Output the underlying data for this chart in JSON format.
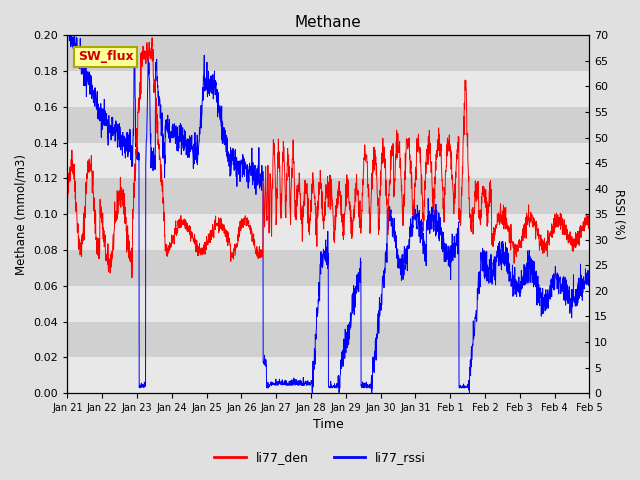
{
  "title": "Methane",
  "xlabel": "Time",
  "ylabel_left": "Methane (mmol/m3)",
  "ylabel_right": "RSSI (%)",
  "ylim_left": [
    0.0,
    0.2
  ],
  "ylim_right": [
    0,
    70
  ],
  "yticks_left": [
    0.0,
    0.02,
    0.04,
    0.06,
    0.08,
    0.1,
    0.12,
    0.14,
    0.16,
    0.18,
    0.2
  ],
  "yticks_right": [
    0,
    5,
    10,
    15,
    20,
    25,
    30,
    35,
    40,
    45,
    50,
    55,
    60,
    65,
    70
  ],
  "xtick_labels": [
    "Jan 21",
    "Jan 22",
    "Jan 23",
    "Jan 24",
    "Jan 25",
    "Jan 26",
    "Jan 27",
    "Jan 28",
    "Jan 29",
    "Jan 30",
    "Jan 31",
    "Feb 1",
    "Feb 2",
    "Feb 3",
    "Feb 4",
    "Feb 5"
  ],
  "color_red": "#FF0000",
  "color_blue": "#0000FF",
  "bg_color": "#E0E0E0",
  "band_light": "#E8E8E8",
  "band_dark": "#D0D0D0",
  "legend_label_red": "li77_den",
  "legend_label_blue": "li77_rssi",
  "annotation_text": "SW_flux",
  "annotation_bg": "#FFFF99",
  "annotation_border": "#AAAA00",
  "linewidth": 0.7
}
